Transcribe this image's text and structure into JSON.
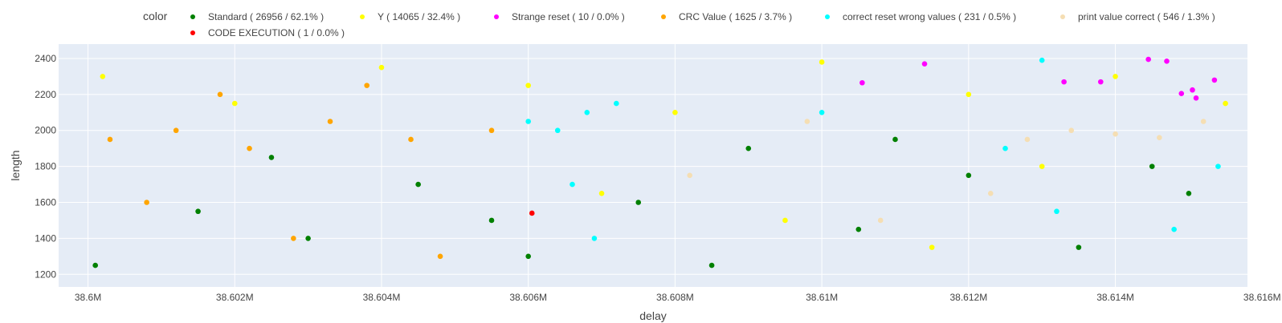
{
  "chart_data": {
    "type": "scatter",
    "xlabel": "delay",
    "ylabel": "length",
    "xlim": [
      38599600,
      38615800
    ],
    "ylim": [
      1130,
      2480
    ],
    "xticks": [
      38600000,
      38602000,
      38604000,
      38606000,
      38608000,
      38610000,
      38612000,
      38614000,
      38616000
    ],
    "xtick_labels": [
      "38.6M",
      "38.602M",
      "38.604M",
      "38.606M",
      "38.608M",
      "38.61M",
      "38.612M",
      "38.614M",
      "38.616M"
    ],
    "yticks": [
      1200,
      1400,
      1600,
      1800,
      2000,
      2200,
      2400
    ],
    "ytick_labels": [
      "1200",
      "1400",
      "1600",
      "1800",
      "2000",
      "2200",
      "2400"
    ],
    "grid": true,
    "legend": {
      "title": "color",
      "placement": "top"
    },
    "series": [
      {
        "name": "Standard ( 26956 / 62.1% )",
        "color": "#008000",
        "points": [
          [
            38600100,
            1250
          ],
          [
            38601500,
            1550
          ],
          [
            38603000,
            1400
          ],
          [
            38604500,
            1700
          ],
          [
            38606000,
            1300
          ],
          [
            38607500,
            1600
          ],
          [
            38609000,
            1900
          ],
          [
            38610500,
            1450
          ],
          [
            38612000,
            1750
          ],
          [
            38613500,
            1350
          ],
          [
            38615000,
            1650
          ],
          [
            38602500,
            1850
          ],
          [
            38605500,
            1500
          ],
          [
            38608500,
            1250
          ],
          [
            38611000,
            1950
          ],
          [
            38614500,
            1800
          ]
        ]
      },
      {
        "name": "Y ( 14065 / 32.4% )",
        "color": "#ffff00",
        "points": [
          [
            38600200,
            2300
          ],
          [
            38602000,
            2150
          ],
          [
            38604000,
            2350
          ],
          [
            38606000,
            2250
          ],
          [
            38608000,
            2100
          ],
          [
            38610000,
            2380
          ],
          [
            38612000,
            2200
          ],
          [
            38614000,
            2300
          ],
          [
            38615500,
            2150
          ],
          [
            38607000,
            1650
          ],
          [
            38609500,
            1500
          ],
          [
            38611500,
            1350
          ],
          [
            38613000,
            1800
          ]
        ]
      },
      {
        "name": "Strange reset ( 10 / 0.0% )",
        "color": "#ff00ff",
        "points": [
          [
            38610550,
            2265
          ],
          [
            38611400,
            2370
          ],
          [
            38613300,
            2270
          ],
          [
            38613800,
            2270
          ],
          [
            38614450,
            2395
          ],
          [
            38614700,
            2385
          ],
          [
            38614900,
            2205
          ],
          [
            38615050,
            2225
          ],
          [
            38615100,
            2180
          ],
          [
            38615350,
            2280
          ]
        ]
      },
      {
        "name": "CRC Value ( 1625 / 3.7% )",
        "color": "#ffa500",
        "points": [
          [
            38600300,
            1950
          ],
          [
            38601200,
            2000
          ],
          [
            38602200,
            1900
          ],
          [
            38603300,
            2050
          ],
          [
            38604400,
            1950
          ],
          [
            38605500,
            2000
          ],
          [
            38600800,
            1600
          ],
          [
            38602800,
            1400
          ],
          [
            38604800,
            1300
          ],
          [
            38601800,
            2200
          ],
          [
            38603800,
            2250
          ]
        ]
      },
      {
        "name": "correct reset wrong values ( 231 / 0.5% )",
        "color": "#00ffff",
        "points": [
          [
            38606000,
            2050
          ],
          [
            38606400,
            2000
          ],
          [
            38606800,
            2100
          ],
          [
            38607200,
            2150
          ],
          [
            38606600,
            1700
          ],
          [
            38606900,
            1400
          ],
          [
            38610000,
            2100
          ],
          [
            38612500,
            1900
          ],
          [
            38613200,
            1550
          ],
          [
            38614800,
            1450
          ],
          [
            38615400,
            1800
          ],
          [
            38613000,
            2390
          ]
        ]
      },
      {
        "name": "print value correct ( 546 / 1.3% )",
        "color": "#f5deb3",
        "points": [
          [
            38612800,
            1950
          ],
          [
            38613400,
            2000
          ],
          [
            38614000,
            1980
          ],
          [
            38614600,
            1960
          ],
          [
            38615200,
            2050
          ],
          [
            38609800,
            2050
          ],
          [
            38608200,
            1750
          ],
          [
            38610800,
            1500
          ],
          [
            38612300,
            1650
          ]
        ]
      },
      {
        "name": "CODE EXECUTION ( 1 / 0.0% )",
        "color": "#ff0000",
        "points": [
          [
            38606050,
            1540
          ]
        ]
      }
    ]
  }
}
